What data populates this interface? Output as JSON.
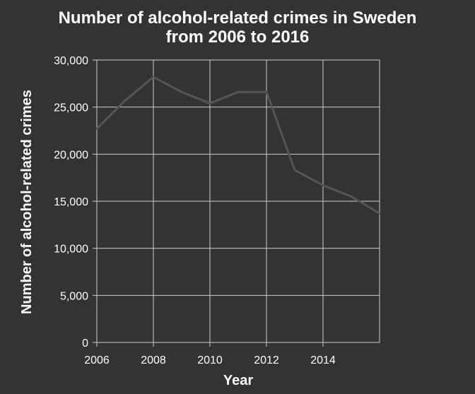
{
  "chart_data": {
    "type": "line",
    "title_lines": [
      "Number of alcohol-related crimes in Sweden",
      "from 2006 to 2016"
    ],
    "xlabel": "Year",
    "ylabel": "Number of alcohol-related crimes",
    "xlim": [
      2006,
      2016
    ],
    "ylim": [
      0,
      30000
    ],
    "x_ticks": [
      2006,
      2008,
      2010,
      2012,
      2014
    ],
    "y_ticks": [
      0,
      5000,
      10000,
      15000,
      20000,
      25000,
      30000
    ],
    "x_tick_labels": [
      "2006",
      "2008",
      "2010",
      "2012",
      "2014"
    ],
    "y_tick_labels": [
      "0",
      "5,000",
      "10,000",
      "15,000",
      "20,000",
      "25,000",
      "30,000"
    ],
    "grid": true,
    "series": [
      {
        "x": [
          2006,
          2007,
          2008,
          2009,
          2010,
          2011,
          2012,
          2013,
          2014,
          2015,
          2016
        ],
        "y": [
          22700,
          25700,
          28200,
          26600,
          25400,
          26600,
          26600,
          18300,
          16700,
          15500,
          13700
        ]
      }
    ],
    "colors": {
      "background": "#333333",
      "grid": "#cccccc",
      "line": "#555555",
      "text": "#ffffff"
    }
  }
}
